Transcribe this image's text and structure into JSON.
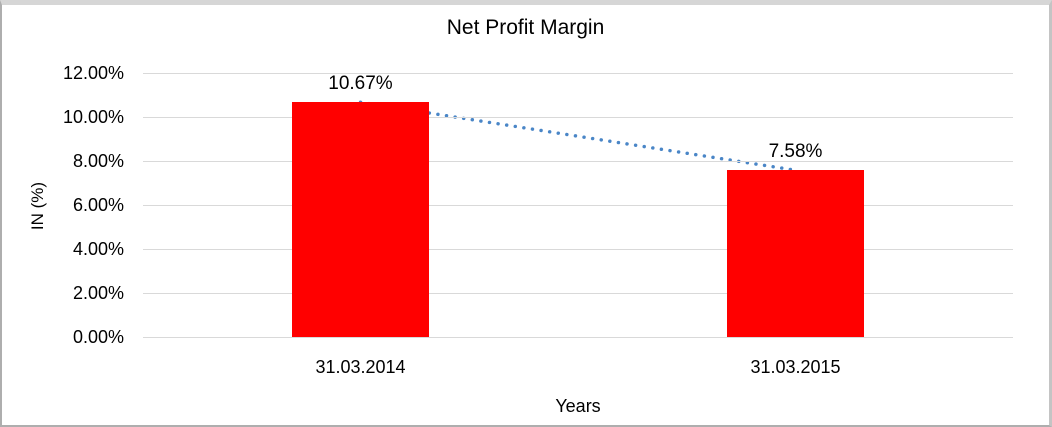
{
  "chart_data": {
    "type": "bar",
    "title": "Net Profit Margin",
    "xlabel": "Years",
    "ylabel": "IN (%)",
    "categories": [
      "31.03.2014",
      "31.03.2015"
    ],
    "values": [
      10.67,
      7.58
    ],
    "data_labels": [
      "10.67%",
      "7.58%"
    ],
    "ylim": [
      0,
      12
    ],
    "yticks": [
      {
        "value": 12,
        "label": "12.00%"
      },
      {
        "value": 10,
        "label": "10.00%"
      },
      {
        "value": 8,
        "label": "8.00%"
      },
      {
        "value": 6,
        "label": "6.00%"
      },
      {
        "value": 4,
        "label": "4.00%"
      },
      {
        "value": 2,
        "label": "2.00%"
      },
      {
        "value": 0,
        "label": "0.00%"
      }
    ],
    "grid": true,
    "legend_position": "none",
    "colors": {
      "bar": "#ff0000",
      "gridline": "#d9d9d9",
      "trendline": "#4a86c7",
      "text": "#000000"
    },
    "trendline": {
      "type": "linear",
      "style": "dotted",
      "from_value": 10.67,
      "to_value": 7.58
    }
  }
}
